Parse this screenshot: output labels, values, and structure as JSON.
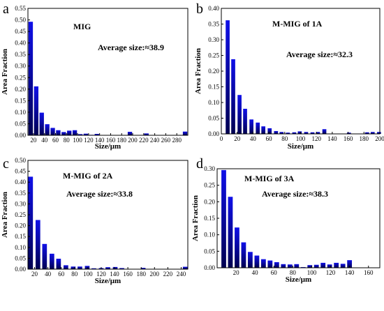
{
  "chart_data": [
    {
      "type": "bar",
      "panel": "a",
      "annotation_title": "MIG",
      "annotation_avg": "Average size:≈38.9",
      "xlabel": "Size/μm",
      "ylabel": "Area Fraction",
      "xlim": [
        10,
        300
      ],
      "ylim": [
        0,
        0.55
      ],
      "xticks": [
        20,
        40,
        60,
        80,
        100,
        120,
        140,
        160,
        180,
        200,
        220,
        240,
        260,
        280
      ],
      "yticks": [
        0.0,
        0.05,
        0.1,
        0.15,
        0.2,
        0.25,
        0.3,
        0.35,
        0.4,
        0.45,
        0.5,
        0.55
      ],
      "ytick_labels": [
        "0.00",
        "0.05",
        "0.10",
        "0.15",
        "0.20",
        "0.25",
        "0.30",
        "0.35",
        "0.40",
        "0.45",
        "0.50",
        "0.55"
      ],
      "bar_width": 8,
      "x": [
        15,
        25,
        35,
        45,
        55,
        65,
        75,
        85,
        95,
        105,
        115,
        125,
        135,
        145,
        155,
        165,
        175,
        185,
        195,
        205,
        215,
        225,
        235,
        245,
        255,
        265,
        275,
        285,
        295
      ],
      "values": [
        0.492,
        0.212,
        0.098,
        0.048,
        0.032,
        0.022,
        0.014,
        0.02,
        0.022,
        0.005,
        0.007,
        0.002,
        0.006,
        0.001,
        0.0,
        0.0,
        0.0,
        0.0,
        0.015,
        0.0,
        0.0,
        0.008,
        0.0,
        0.0,
        0.0,
        0.0,
        0.0,
        0.0,
        0.016
      ]
    },
    {
      "type": "bar",
      "panel": "b",
      "annotation_title": "M-MIG of 1A",
      "annotation_avg": "Average size:≈32.3",
      "xlabel": "Size/μm",
      "ylabel": "Area Fraction",
      "xlim": [
        0,
        200
      ],
      "ylim": [
        0,
        0.4
      ],
      "xticks": [
        0,
        20,
        40,
        60,
        80,
        100,
        120,
        140,
        160,
        180,
        200
      ],
      "yticks": [
        0.0,
        0.05,
        0.1,
        0.15,
        0.2,
        0.25,
        0.3,
        0.35,
        0.4
      ],
      "ytick_labels": [
        "0.00",
        "0.05",
        "0.10",
        "0.15",
        "0.20",
        "0.25",
        "0.30",
        "0.35",
        "0.40"
      ],
      "bar_width": 5,
      "x": [
        8,
        15,
        23,
        30,
        38,
        46,
        53,
        61,
        69,
        76,
        84,
        92,
        99,
        107,
        115,
        122,
        130,
        138,
        145,
        153,
        161,
        168,
        176,
        184,
        191,
        199
      ],
      "values": [
        0.362,
        0.238,
        0.124,
        0.08,
        0.046,
        0.036,
        0.024,
        0.018,
        0.009,
        0.006,
        0.004,
        0.005,
        0.008,
        0.006,
        0.005,
        0.006,
        0.015,
        0.001,
        0.001,
        0.0,
        0.004,
        0.0,
        0.001,
        0.005,
        0.006,
        0.006
      ]
    },
    {
      "type": "bar",
      "panel": "c",
      "annotation_title": "M-MIG of 2A",
      "annotation_avg": "Average size:≈33.8",
      "xlabel": "Size/μm",
      "ylabel": "Area Fraction",
      "xlim": [
        10,
        250
      ],
      "ylim": [
        0,
        0.5
      ],
      "xticks": [
        20,
        40,
        60,
        80,
        100,
        120,
        140,
        160,
        180,
        200,
        220,
        240
      ],
      "yticks": [
        0.0,
        0.05,
        0.1,
        0.15,
        0.2,
        0.25,
        0.3,
        0.35,
        0.4,
        0.45,
        0.5
      ],
      "ytick_labels": [
        "0.00",
        "0.05",
        "0.10",
        "0.15",
        "0.20",
        "0.25",
        "0.30",
        "0.35",
        "0.40",
        "0.45",
        "0.50"
      ],
      "bar_width": 7,
      "x": [
        14,
        25,
        35,
        46,
        56,
        67,
        78,
        88,
        99,
        109,
        120,
        130,
        141,
        151,
        162,
        172,
        183,
        194,
        204,
        215,
        225,
        236,
        246
      ],
      "values": [
        0.425,
        0.226,
        0.116,
        0.071,
        0.048,
        0.018,
        0.012,
        0.012,
        0.015,
        0.004,
        0.005,
        0.009,
        0.01,
        0.005,
        0.0,
        0.0,
        0.006,
        0.0,
        0.0,
        0.0,
        0.0,
        0.0,
        0.011
      ]
    },
    {
      "type": "bar",
      "panel": "d",
      "annotation_title": "M-MIG of 3A",
      "annotation_avg": "Average size:≈38.3",
      "xlabel": "Size/μm",
      "ylabel": "Area Fraction",
      "xlim": [
        0,
        172
      ],
      "ylim": [
        0,
        0.3
      ],
      "xticks": [
        20,
        40,
        60,
        80,
        100,
        120,
        140,
        160
      ],
      "yticks": [
        0.0,
        0.05,
        0.1,
        0.15,
        0.2,
        0.25,
        0.3
      ],
      "ytick_labels": [
        "0.00",
        "0.05",
        "0.10",
        "0.15",
        "0.20",
        "0.25",
        "0.30"
      ],
      "bar_width": 5,
      "x": [
        7,
        14,
        21,
        28,
        35,
        42,
        49,
        56,
        63,
        70,
        77,
        84,
        91,
        98,
        105,
        112,
        119,
        126,
        133,
        140,
        147,
        154,
        161,
        168
      ],
      "values": [
        0.296,
        0.215,
        0.122,
        0.077,
        0.048,
        0.037,
        0.026,
        0.022,
        0.017,
        0.011,
        0.01,
        0.011,
        0.002,
        0.008,
        0.009,
        0.015,
        0.01,
        0.015,
        0.012,
        0.023,
        0.0,
        0.0,
        0.0,
        0.0
      ]
    }
  ]
}
